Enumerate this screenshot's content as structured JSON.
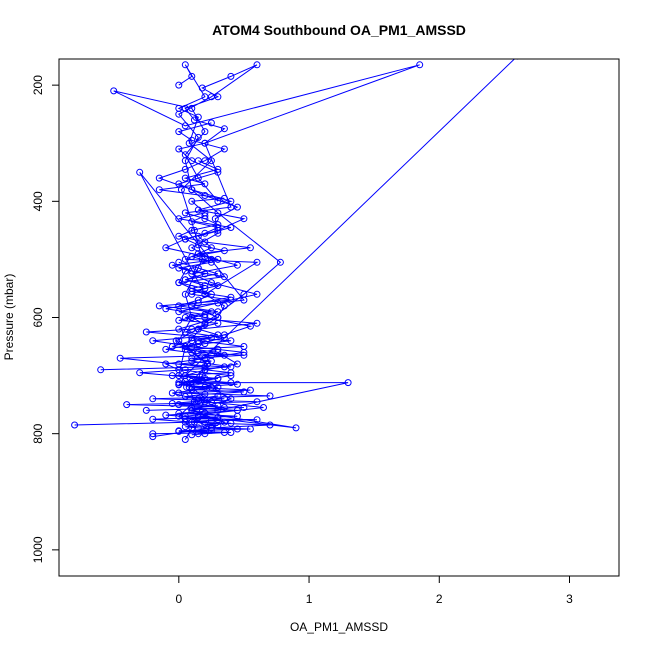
{
  "chart_data": {
    "type": "line",
    "title": "ATOM4 Southbound OA_PM1_AMSSD",
    "xlabel": "OA_PM1_AMSSD",
    "ylabel": "Pressure (mbar)",
    "xlim": [
      -0.92,
      3.38
    ],
    "ylim": [
      1045,
      155
    ],
    "y_reversed": true,
    "x_ticks": [
      0,
      1,
      2,
      3
    ],
    "y_ticks": [
      200,
      400,
      600,
      800,
      1000
    ],
    "grid": false,
    "legend": "none",
    "series_color": "#0000ff",
    "marker": "open-circle",
    "series": [
      {
        "x": [
          0.05,
          0.1,
          0.0,
          0.12,
          0.08,
          0.18,
          0.22,
          0.1,
          -0.02,
          0.15,
          0.3,
          0.35,
          0.2,
          0.0,
          0.05,
          0.25,
          0.1,
          0.3,
          0.28,
          0.45,
          0.2,
          0.0,
          0.3,
          0.1,
          0.0,
          0.2,
          0.35,
          0.12,
          0.05,
          0.3,
          0.18,
          0.4,
          0.6,
          0.25,
          0.0,
          0.15,
          0.05,
          0.1,
          0.3,
          0.78,
          0.5,
          0.2,
          0.05,
          0.0,
          0.2,
          0.12
        ],
        "y": [
          810,
          790,
          770,
          745,
          720,
          700,
          680,
          660,
          640,
          620,
          600,
          580,
          560,
          540,
          520,
          500,
          480,
          455,
          430,
          410,
          390,
          370,
          350,
          330,
          310,
          300,
          275,
          260,
          240,
          220,
          205,
          185,
          165,
          220,
          250,
          290,
          330,
          380,
          420,
          505,
          560,
          610,
          650,
          700,
          740,
          780
        ]
      },
      {
        "x": [
          0.15,
          0.35,
          0.1,
          0.4,
          0.25,
          0.05,
          0.2,
          0.45,
          0.3,
          -0.05,
          0.1,
          0.35,
          0.55,
          0.2,
          0.0,
          0.3,
          0.6,
          0.25,
          0.1,
          0.45,
          0.2,
          -0.1,
          0.05,
          0.3,
          0.5,
          0.15,
          0.4,
          0.1,
          -0.15,
          0.05,
          0.2,
          0.35,
          0.1,
          0.0,
          0.25
        ],
        "y": [
          800,
          780,
          760,
          740,
          720,
          700,
          690,
          680,
          660,
          650,
          640,
          630,
          615,
          600,
          590,
          575,
          560,
          540,
          525,
          510,
          495,
          480,
          465,
          450,
          430,
          415,
          400,
          380,
          360,
          345,
          330,
          310,
          295,
          280,
          265
        ]
      },
      {
        "x": [
          -0.2,
          0.25,
          0.05,
          0.65,
          0.2,
          -0.05,
          0.3,
          0.1,
          0.4,
          0.0,
          -0.1,
          0.2,
          0.5,
          0.1,
          -0.2,
          0.3,
          0.15,
          0.6,
          0.05,
          0.25,
          -0.15,
          0.4,
          0.1,
          0.2,
          0.0,
          0.35,
          0.1,
          -0.05,
          0.3,
          0.15,
          0.55,
          0.2,
          0.0,
          0.1,
          0.3,
          0.2,
          0.05,
          0.4,
          0.2,
          1.85,
          0.05,
          -0.5,
          0.1,
          0.2,
          0.05,
          0.15,
          0.3
        ],
        "y": [
          805,
          790,
          770,
          755,
          745,
          730,
          720,
          710,
          700,
          690,
          680,
          670,
          660,
          650,
          640,
          630,
          620,
          610,
          600,
          590,
          580,
          570,
          560,
          550,
          540,
          530,
          520,
          510,
          500,
          490,
          480,
          470,
          460,
          450,
          440,
          430,
          420,
          410,
          300,
          165,
          270,
          210,
          240,
          280,
          320,
          360,
          400
        ]
      },
      {
        "x": [
          -0.8,
          0.1,
          -0.2,
          0.45,
          0.0,
          0.3,
          1.3,
          0.0,
          0.2,
          -0.3,
          0.05,
          0.4,
          0.1,
          0.25,
          -0.1,
          0.15,
          0.35,
          0.05,
          0.2,
          0.1,
          0.3,
          0.0,
          0.15,
          0.25,
          0.1,
          0.2,
          0.05,
          0.3,
          0.15,
          0.0
        ],
        "y": [
          785,
          780,
          775,
          770,
          765,
          760,
          712,
          712,
          705,
          695,
          690,
          685,
          675,
          665,
          655,
          645,
          635,
          625,
          612,
          600,
          590,
          580,
          570,
          560,
          550,
          545,
          535,
          525,
          515,
          505
        ]
      },
      {
        "x": [
          -0.6,
          0.2,
          -0.45,
          0.35,
          0.05,
          0.5,
          0.15,
          0.25,
          -0.25,
          0.1,
          0.3,
          0.0,
          0.2,
          -0.1,
          0.15,
          0.4,
          0.1,
          0.3,
          0.05,
          0.2,
          0.0,
          0.25,
          0.1,
          0.35,
          0.15,
          0.05,
          0.2,
          0.3,
          0.1,
          0.2
        ],
        "y": [
          690,
          685,
          670,
          665,
          655,
          650,
          640,
          635,
          625,
          620,
          610,
          605,
          595,
          585,
          575,
          565,
          555,
          545,
          535,
          525,
          515,
          505,
          495,
          485,
          475,
          465,
          455,
          445,
          435,
          425
        ]
      },
      {
        "x": [
          -0.25,
          0.5,
          -0.4,
          0.6,
          -0.2,
          0.7,
          0.0,
          0.55,
          0.1,
          0.45,
          0.05,
          0.3,
          -0.05,
          0.4,
          0.2,
          0.35,
          0.0,
          0.25,
          0.1,
          0.5,
          0.15,
          0.3,
          0.05,
          0.2,
          0.4,
          0.1
        ],
        "y": [
          760,
          755,
          750,
          745,
          740,
          735,
          730,
          725,
          720,
          715,
          710,
          705,
          700,
          695,
          690,
          685,
          680,
          675,
          670,
          665,
          660,
          655,
          650,
          645,
          640,
          635
        ]
      },
      {
        "x": [
          -0.2,
          0.4,
          0.0,
          0.55,
          0.25,
          0.7,
          0.05,
          0.3,
          0.15,
          -0.1,
          0.2,
          0.45,
          0.1,
          0.3,
          -0.05,
          0.15,
          0.35,
          0.05,
          0.2,
          0.5,
          0.1,
          0.25,
          0.0,
          0.4,
          0.15
        ],
        "y": [
          800,
          798,
          795,
          792,
          790,
          785,
          780,
          776,
          772,
          768,
          764,
          760,
          756,
          752,
          748,
          744,
          740,
          736,
          732,
          728,
          724,
          720,
          716,
          712,
          708
        ]
      },
      {
        "x": [
          0.1,
          0.2,
          0.35,
          0.0,
          0.25,
          0.45,
          0.15,
          0.05,
          0.3,
          0.2,
          0.4,
          0.1,
          0.25,
          0.6,
          0.05,
          0.3,
          0.15,
          0.9,
          0.2,
          0.1,
          0.35,
          0.0,
          0.25,
          0.15,
          0.3
        ],
        "y": [
          802,
          800,
          798,
          796,
          794,
          792,
          790,
          788,
          786,
          784,
          782,
          780,
          778,
          776,
          774,
          772,
          770,
          790,
          765,
          760,
          755,
          750,
          745,
          740,
          735
        ]
      },
      {
        "x": [
          0.0,
          0.3,
          0.1,
          0.5,
          -0.3,
          0.2,
          0.6,
          0.05,
          0.25,
          0.15,
          0.4,
          0.0,
          0.2,
          0.1,
          0.35,
          -0.15,
          0.2,
          0.05,
          0.3,
          0.15
        ],
        "y": [
          620,
          600,
          580,
          570,
          350,
          560,
          505,
          500,
          480,
          460,
          445,
          430,
          420,
          400,
          395,
          380,
          370,
          360,
          345,
          330
        ]
      },
      {
        "x": [
          0.0,
          0.1,
          0.05,
          0.2,
          0.0,
          0.15,
          0.08,
          0.25,
          0.02,
          0.12,
          0.18,
          0.05,
          0.1,
          0.0,
          0.22,
          0.06
        ],
        "y": [
          200,
          185,
          165,
          220,
          240,
          255,
          300,
          330,
          380,
          450,
          500,
          560,
          600,
          640,
          680,
          720
        ]
      },
      {
        "x": [
          2.6,
          0.05,
          0.3,
          0.15,
          0.0,
          0.2
        ],
        "y": [
          150,
          700,
          705,
          710,
          715,
          720
        ]
      }
    ]
  }
}
